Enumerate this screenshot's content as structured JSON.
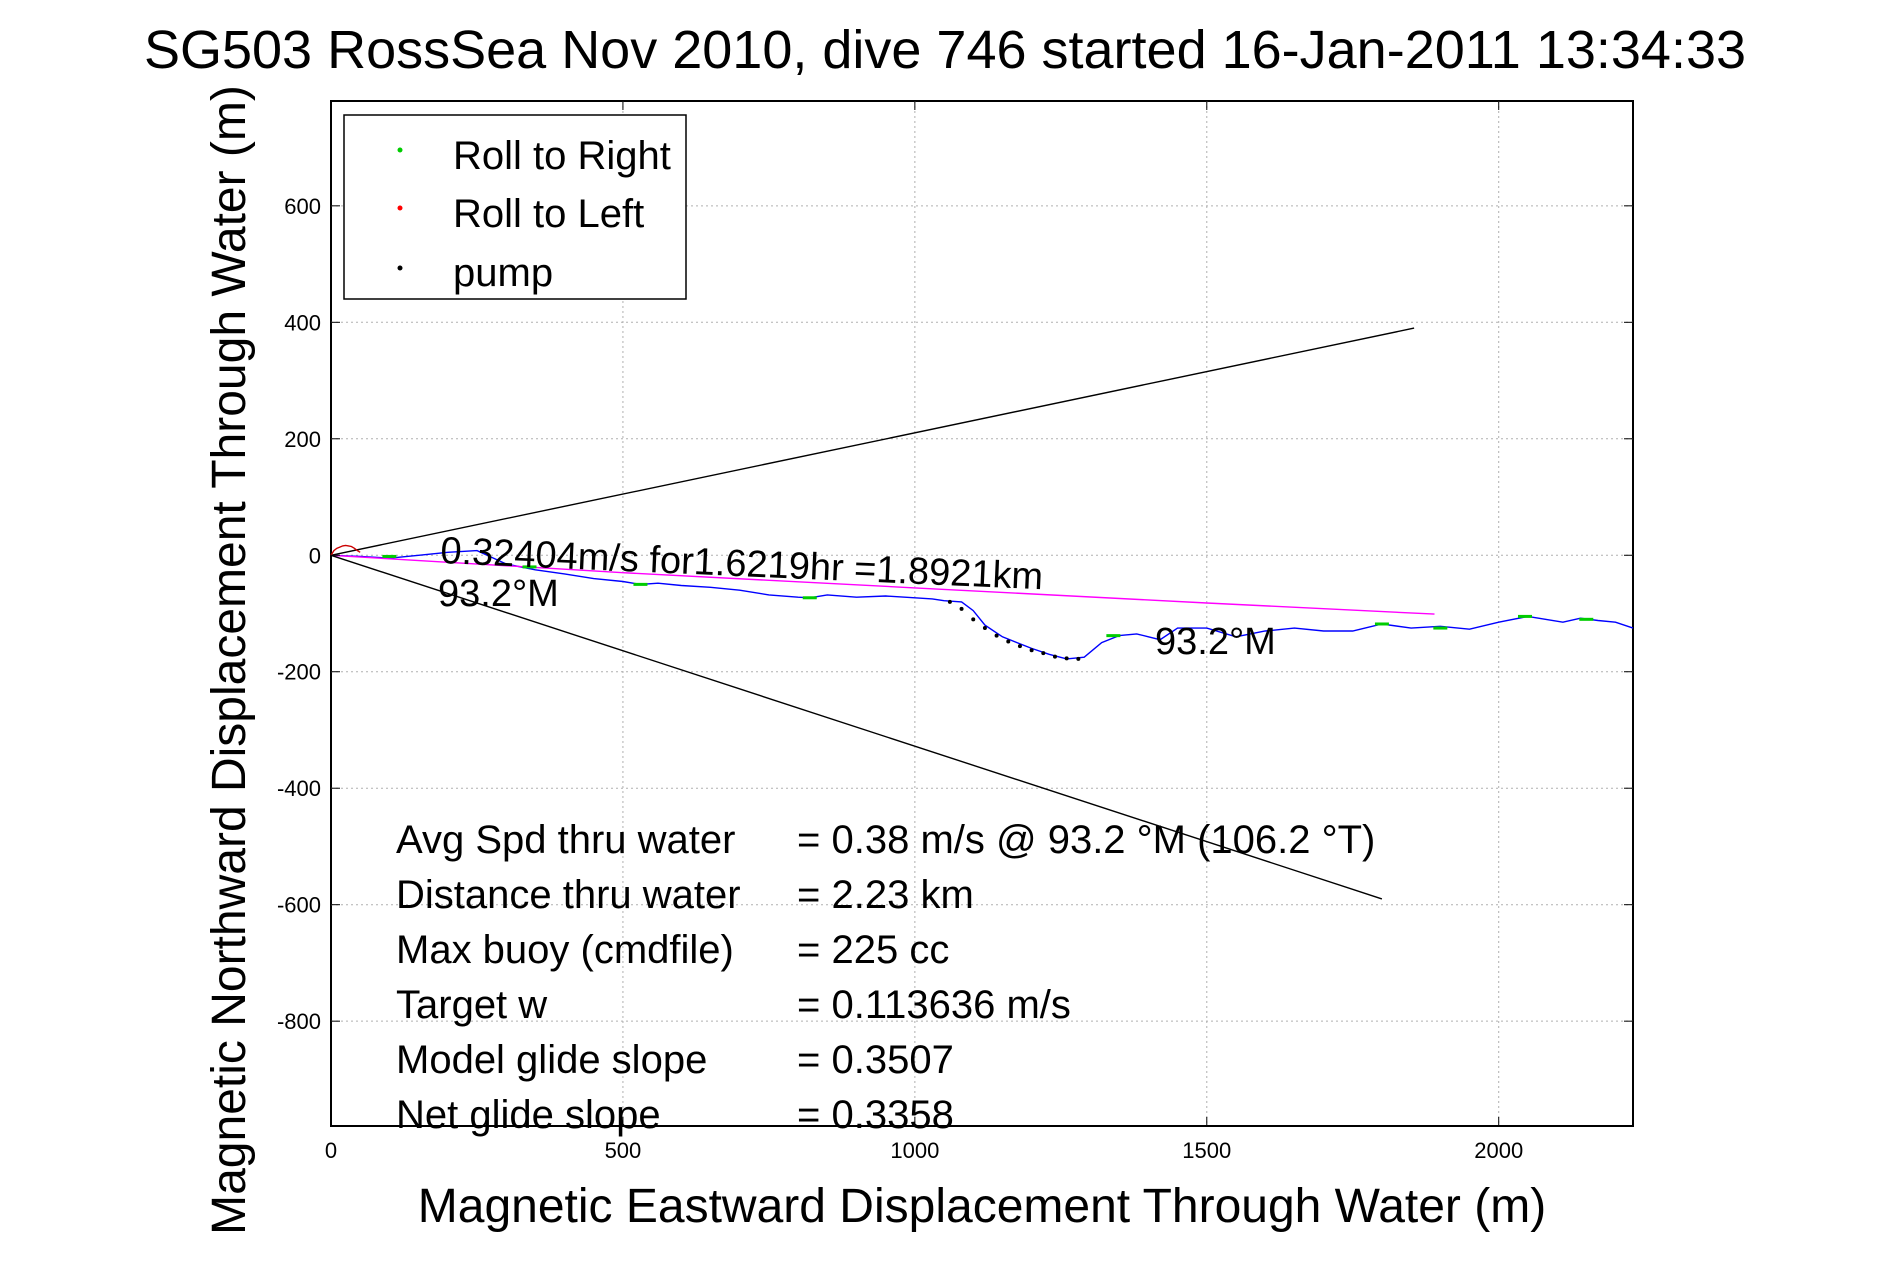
{
  "chart_data": {
    "type": "line",
    "title": "SG503 RossSea Nov 2010, dive 746 started 16-Jan-2011 13:34:33",
    "xlabel": "Magnetic Eastward Displacement Through Water (m)",
    "ylabel": "Magnetic Northward Displacement Through Water (m)",
    "xlim": [
      0,
      2230
    ],
    "ylim": [
      -980,
      780
    ],
    "grid": true,
    "legend_position": "top-left",
    "xticks": [
      0,
      500,
      1000,
      1500,
      2000
    ],
    "xtick_labels": [
      "0",
      "500",
      "1000",
      "1500",
      "2000"
    ],
    "yticks": [
      600,
      400,
      200,
      0,
      -200,
      -400,
      -600,
      -800
    ],
    "ytick_labels": [
      "600",
      "400",
      "200",
      "0",
      "-200",
      "-400",
      "-600",
      "-800"
    ],
    "legend": [
      {
        "label": "Roll to Right",
        "color": "#00cc00"
      },
      {
        "label": "Roll to Left",
        "color": "#ff0000"
      },
      {
        "label": "pump",
        "color": "#000000"
      }
    ],
    "series": [
      {
        "color": "#0000ff",
        "x": [
          0,
          50,
          100,
          150,
          200,
          250,
          300,
          350,
          400,
          450,
          500,
          530,
          560,
          600,
          650,
          700,
          750,
          800,
          820,
          850,
          900,
          950,
          1000,
          1030,
          1050,
          1080,
          1100,
          1120,
          1150,
          1200,
          1230,
          1260,
          1290,
          1320,
          1350,
          1380,
          1400,
          1420,
          1450,
          1500,
          1550,
          1600,
          1650,
          1700,
          1750,
          1800,
          1850,
          1900,
          1950,
          2000,
          2050,
          2080,
          2110,
          2140,
          2170,
          2200,
          2230
        ],
        "y": [
          0,
          -2,
          -5,
          0,
          5,
          8,
          -15,
          -25,
          -32,
          -40,
          -45,
          -50,
          -48,
          -52,
          -55,
          -60,
          -68,
          -72,
          -73,
          -68,
          -72,
          -70,
          -73,
          -75,
          -78,
          -80,
          -95,
          -120,
          -140,
          -160,
          -170,
          -178,
          -175,
          -150,
          -138,
          -135,
          -140,
          -145,
          -125,
          -125,
          -140,
          -130,
          -125,
          -130,
          -130,
          -118,
          -125,
          -122,
          -127,
          -115,
          -105,
          -110,
          -115,
          -108,
          -112,
          -115,
          -125
        ]
      },
      {
        "color": "#ff00ff",
        "x": [
          0,
          500,
          1000,
          1500,
          1890
        ],
        "y": [
          0,
          -30,
          -56,
          -82,
          -101
        ]
      },
      {
        "color": "#000000",
        "x": [
          0,
          1855
        ],
        "y": [
          0,
          390
        ]
      },
      {
        "color": "#000000",
        "x": [
          0,
          1800
        ],
        "y": [
          0,
          -590
        ]
      },
      {
        "color": "#cc0000",
        "x": [
          0,
          5,
          10,
          15,
          20,
          25,
          30,
          35,
          40,
          45,
          50
        ],
        "y": [
          0,
          8,
          12,
          14,
          16,
          17,
          16,
          15,
          12,
          8,
          5
        ]
      }
    ],
    "roll_right_points": {
      "x": [
        100,
        340,
        530,
        820,
        1340,
        1800,
        1900,
        2045,
        2150
      ],
      "y": [
        -2,
        -20,
        -50,
        -73,
        -138,
        -118,
        -125,
        -105,
        -110
      ]
    },
    "pump_points": {
      "x": [
        1060,
        1080,
        1100,
        1120,
        1140,
        1160,
        1180,
        1200,
        1220,
        1240,
        1260,
        1280
      ],
      "y": [
        -80,
        -92,
        -110,
        -125,
        -138,
        -148,
        -156,
        -163,
        -168,
        -174,
        -177,
        -178
      ]
    },
    "annotations": {
      "speed_line1": "0.32404m/s for1.6219hr =1.8921km",
      "speed_line2": "93.2°M",
      "heading_right": "93.2°M"
    },
    "stats": [
      {
        "label": "Avg Spd thru water",
        "value": "=  0.38 m/s @  93.2 °M (106.2 °T)"
      },
      {
        "label": "Distance thru water",
        "value": "=  2.23 km"
      },
      {
        "label": "Max buoy (cmdfile)",
        "value": "= 225 cc"
      },
      {
        "label": "Target w",
        "value": "= 0.113636 m/s"
      },
      {
        "label": "Model glide slope",
        "value": "= 0.3507"
      },
      {
        "label": "Net glide slope",
        "value": "= 0.3358"
      }
    ]
  }
}
